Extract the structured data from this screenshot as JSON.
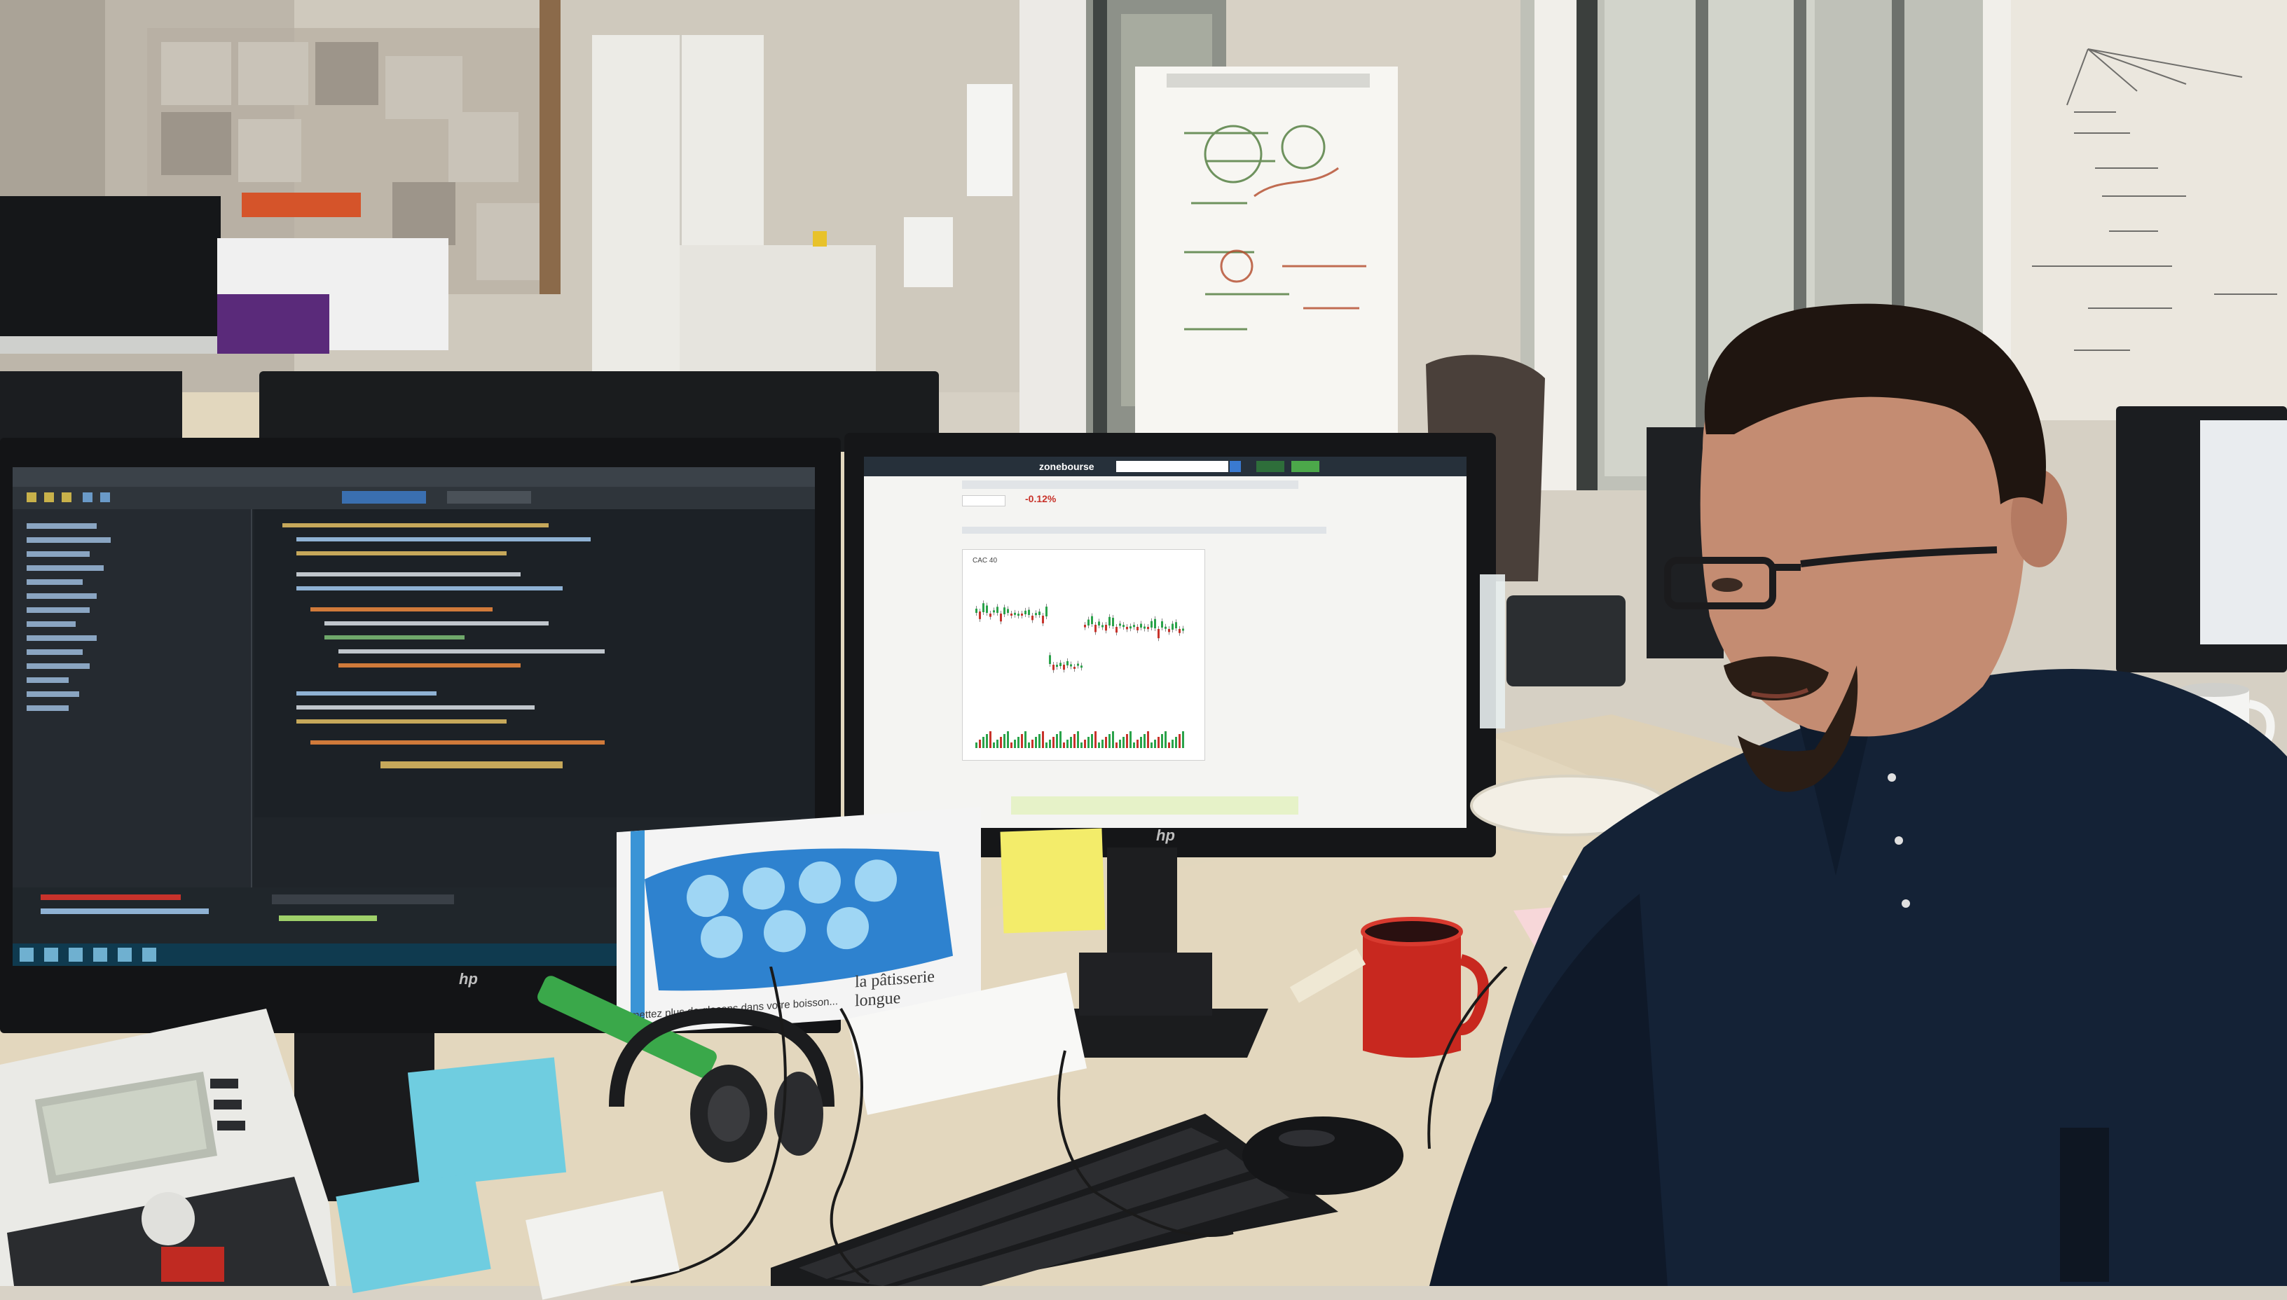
{
  "scene": {
    "background_wall_color": "#d9d3c7",
    "desk_color": "#e2d6bf",
    "shirt_color": "#142235",
    "ide_bg": "#1e2328",
    "browser_bg": "#f2f2f2",
    "chart_up": "#2aa34a",
    "chart_down": "#c8332b"
  },
  "left_monitor": {
    "brand_logo": "hp"
  },
  "right_monitor": {
    "brand_logo": "hp",
    "site_logo": "zonebourse",
    "chart": {
      "title": "CAC 40",
      "change": "-0.12%"
    }
  },
  "packaging": {
    "brand": "la pâtisserie longue",
    "text": "mettez plus de glaçons dans votre boisson..."
  },
  "icons": [
    "desk-phone-icon",
    "keyboard-icon",
    "mouse-icon",
    "headphones-icon",
    "mug-icon",
    "plate-icon",
    "office-chair-icon",
    "whiteboard-icon",
    "sticky-note-icon"
  ]
}
